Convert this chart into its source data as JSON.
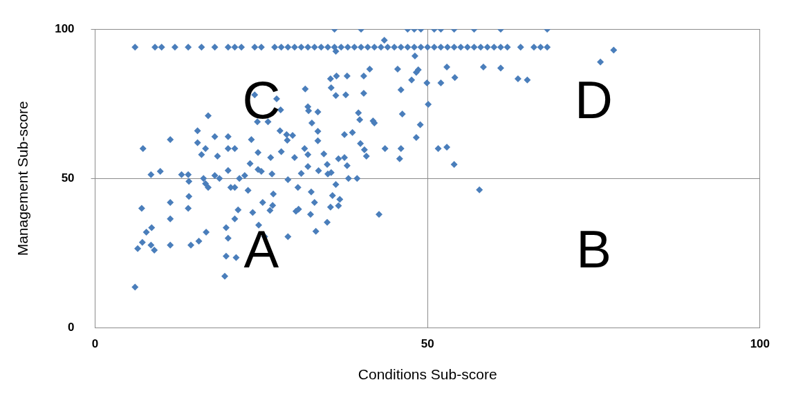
{
  "chart_data": {
    "type": "scatter",
    "xlabel": "Conditions Sub-score",
    "ylabel": "Management Sub-score",
    "xlim": [
      0,
      100
    ],
    "ylim": [
      0,
      100
    ],
    "xticks": [
      0,
      50,
      100
    ],
    "yticks": [
      0,
      50,
      100
    ],
    "grid": true,
    "marker": "diamond",
    "legend": false,
    "annotations": [
      "C",
      "D",
      "A",
      "B"
    ],
    "series": [
      {
        "color": "#4a7ebb",
        "x": [
          36,
          40,
          47,
          48,
          49,
          51,
          52,
          54,
          57,
          61,
          68,
          6,
          9,
          10,
          12,
          14,
          16,
          18,
          20,
          21,
          22,
          24,
          25,
          27,
          28,
          29,
          30,
          31,
          32,
          33,
          34,
          35,
          36,
          37,
          38,
          39,
          40,
          41,
          42,
          43,
          44,
          45,
          46,
          47,
          48,
          49,
          50,
          51,
          52,
          53,
          54,
          55,
          56,
          57,
          58,
          59,
          60,
          61,
          62,
          64,
          66,
          67,
          68,
          78,
          76,
          65,
          61,
          7.2,
          7,
          6.4,
          6,
          7.1,
          7.7,
          8.5,
          8.4,
          9.8,
          8.4,
          8.9,
          11.3,
          11.3,
          11.3,
          11.3,
          13,
          14,
          14.1,
          14.1,
          14,
          14.4,
          15.6,
          15.4,
          15.4,
          16,
          16.3,
          17,
          16.6,
          16.7,
          17,
          16.6,
          18,
          18.4,
          18,
          18.7,
          20,
          20,
          20,
          20.4,
          19.7,
          20,
          19.7,
          19.5,
          21,
          21,
          21,
          21.7,
          21.5,
          21.2,
          23.3,
          22.5,
          23.5,
          23,
          24,
          24.4,
          24.5,
          24.5,
          25,
          23.7,
          25.2,
          24.6,
          25.5,
          26,
          26.4,
          26.6,
          26.8,
          26.7,
          26.3,
          27.3,
          27.9,
          27.8,
          28,
          29,
          29,
          28.8,
          28.9,
          29.7,
          30,
          30.5,
          30.2,
          30.6,
          31,
          31.6,
          32,
          32.1,
          32.6,
          31.5,
          32,
          32,
          32.5,
          32.4,
          33,
          33.2,
          33.5,
          33.5,
          33.5,
          33.6,
          34.4,
          34.9,
          35,
          35.4,
          35.5,
          35.5,
          35.7,
          35.4,
          34.9,
          36.2,
          36.2,
          36.3,
          36.6,
          36.8,
          36.6,
          36.2,
          37.5,
          37.5,
          37.9,
          37.7,
          37.9,
          38.1,
          38.7,
          39.4,
          39.6,
          39.8,
          39.9,
          40.4,
          40.4,
          40.5,
          40.8,
          41.3,
          41.8,
          42,
          42.7,
          43.6,
          43.5,
          45.5,
          46,
          46.2,
          46,
          45.8,
          47.6,
          48.1,
          48.3,
          48.6,
          48.3,
          48.9,
          50.1,
          49.9,
          51.6,
          52.9,
          54,
          52,
          52.9,
          54.1,
          57.8,
          58.4,
          63.6
        ],
        "values": [
          100,
          100,
          100,
          100,
          100,
          100,
          100,
          100,
          100,
          100,
          100,
          94,
          94,
          94,
          94,
          94,
          94,
          94,
          94,
          94,
          94,
          94,
          94,
          94,
          94,
          94,
          94,
          94,
          94,
          94,
          94,
          94,
          94,
          94,
          94,
          94,
          94,
          94,
          94,
          94,
          94,
          94,
          94,
          94,
          94,
          94,
          94,
          94,
          94,
          94,
          94,
          94,
          94,
          94,
          94,
          94,
          94,
          94,
          94,
          94,
          94,
          94,
          94,
          93,
          89,
          83,
          87,
          60,
          40,
          26.5,
          13.6,
          28.6,
          32,
          33.5,
          51.3,
          52.4,
          27.7,
          26,
          63,
          42,
          36.5,
          27.7,
          51.3,
          51.3,
          49,
          44,
          40,
          27.7,
          29,
          66,
          62,
          58,
          50,
          47,
          48.3,
          32,
          71,
          60,
          64,
          57.5,
          51,
          50,
          64,
          60,
          52.7,
          47,
          33.5,
          30,
          24,
          17.3,
          60,
          47,
          36.5,
          50,
          39.5,
          23.5,
          55,
          51,
          63,
          46,
          78,
          69,
          58.7,
          53,
          52.4,
          38.6,
          42,
          34.4,
          30.5,
          69,
          57,
          51.5,
          44.8,
          41,
          39.3,
          76.7,
          73,
          66,
          59,
          49.6,
          30.5,
          64.7,
          62.8,
          64.4,
          57,
          47,
          39,
          39.7,
          51.7,
          80,
          74,
          72.7,
          68.6,
          60,
          58,
          54,
          45.5,
          38,
          42,
          32.3,
          72.3,
          65.8,
          62.6,
          52.6,
          58.2,
          54.7,
          51.5,
          83.4,
          80.4,
          52,
          44.3,
          40.4,
          35.3,
          92.6,
          77.8,
          84.3,
          56.6,
          43,
          40.9,
          48,
          64.7,
          57,
          54.3,
          78,
          84.3,
          50,
          65.4,
          50,
          72,
          69.7,
          61.7,
          84.3,
          78.5,
          59.6,
          57.5,
          86.6,
          69.3,
          68.6,
          38,
          60,
          96.3,
          86.6,
          79.7,
          71.6,
          60,
          56.6,
          83,
          91,
          85.5,
          86.4,
          63.7,
          68,
          74.8,
          82,
          60,
          60.5,
          54.7,
          82,
          87.3,
          83.8,
          46.2,
          87.3,
          83.4
        ]
      }
    ]
  }
}
